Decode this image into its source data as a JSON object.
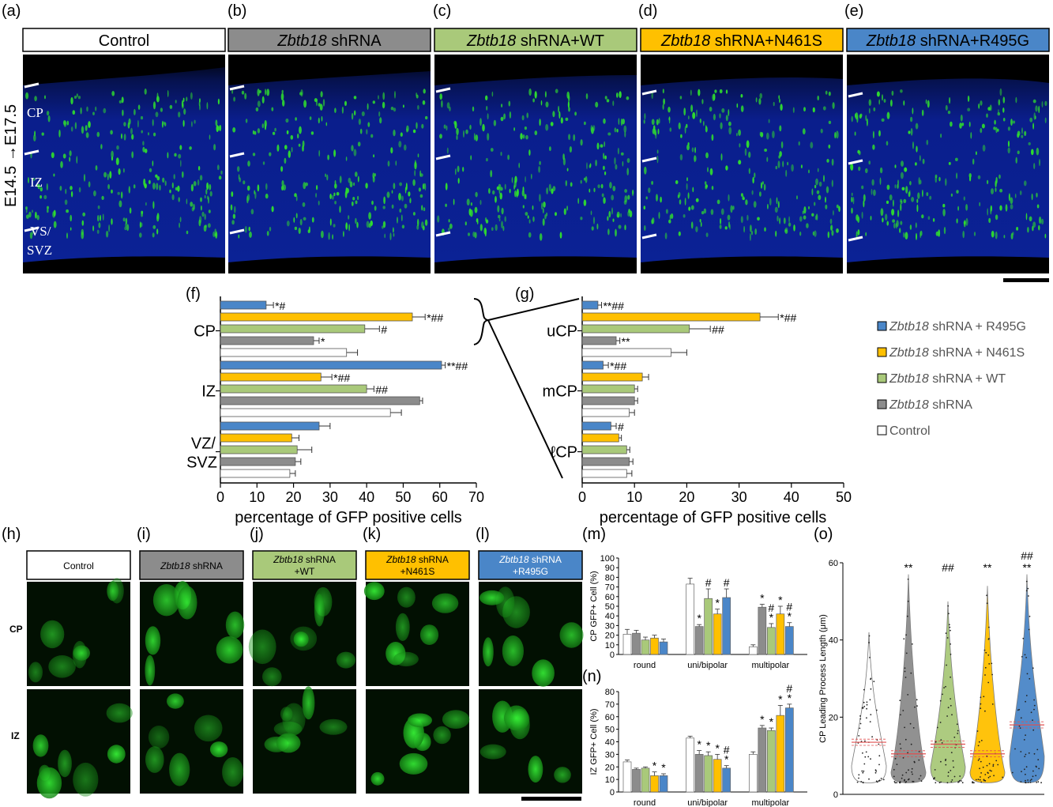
{
  "panel_letters": {
    "a": "(a)",
    "b": "(b)",
    "c": "(c)",
    "d": "(d)",
    "e": "(e)",
    "f": "(f)",
    "g": "(g)",
    "h": "(h)",
    "i": "(i)",
    "j": "(j)",
    "k": "(k)",
    "l": "(l)",
    "m": "(m)",
    "n": "(n)",
    "o": "(o)"
  },
  "gene": "Zbtb18",
  "headers_top": [
    {
      "italic": "",
      "rest": "Control",
      "color": "#ffffff"
    },
    {
      "italic": "Zbtb18",
      "rest": " shRNA",
      "color": "#8c8c8c"
    },
    {
      "italic": "Zbtb18",
      "rest": " shRNA+WT",
      "color": "#a9c97a"
    },
    {
      "italic": "Zbtb18",
      "rest": " shRNA+N461S",
      "color": "#ffc000"
    },
    {
      "italic": "Zbtb18",
      "rest": " shRNA+R495G",
      "color": "#4a86c8"
    }
  ],
  "headers_bottom": [
    {
      "line1_italic": "",
      "line1_rest": "Control",
      "line2": "",
      "color": "#ffffff"
    },
    {
      "line1_italic": "Zbtb18",
      "line1_rest": " shRNA",
      "line2": "",
      "color": "#8c8c8c"
    },
    {
      "line1_italic": "Zbtb18",
      "line1_rest": " shRNA",
      "line2": "+WT",
      "color": "#a9c97a"
    },
    {
      "line1_italic": "Zbtb18",
      "line1_rest": " shRNA",
      "line2": "+N461S",
      "color": "#ffc000"
    },
    {
      "line1_italic": "Zbtb18",
      "line1_rest": " shRNA",
      "line2": "+R495G",
      "color": "#4a86c8"
    }
  ],
  "micro_labels": {
    "timepoint": "E14.5 →E17.5",
    "cp": "CP",
    "iz": "IZ",
    "vs": "VS/",
    "svz": "SVZ",
    "row_cp": "CP",
    "row_iz": "IZ"
  },
  "colors": {
    "R495G": "#4a86c8",
    "N461S": "#ffc000",
    "WT": "#a9c97a",
    "shRNA": "#8c8c8c",
    "Control": "#ffffff",
    "tissue_blue": "#0a1e8c",
    "gfp": "#2fcf2f"
  },
  "legend": [
    {
      "italic": "Zbtb18",
      "rest": " shRNA + R495G",
      "color": "#4a86c8"
    },
    {
      "italic": "Zbtb18",
      "rest": " shRNA + N461S",
      "color": "#ffc000"
    },
    {
      "italic": "Zbtb18",
      "rest": " shRNA + WT",
      "color": "#a9c97a"
    },
    {
      "italic": "Zbtb18",
      "rest": " shRNA",
      "color": "#8c8c8c"
    },
    {
      "italic": "",
      "rest": "Control",
      "color": "#ffffff"
    }
  ],
  "chart_data": [
    {
      "panel": "f",
      "type": "bar",
      "orientation": "horizontal",
      "xlabel": "percentage of GFP positive cells",
      "xlim": [
        0,
        70
      ],
      "xticks": [
        0,
        10,
        20,
        30,
        40,
        50,
        60,
        70
      ],
      "categories": [
        "CP",
        "IZ",
        "VZ/SVZ"
      ],
      "category_labels": [
        [
          "CP"
        ],
        [
          "IZ"
        ],
        [
          "VZ/",
          "SVZ"
        ]
      ],
      "series": [
        {
          "name": "Zbtb18 shRNA + R495G",
          "values": [
            12.5,
            60.5,
            27
          ],
          "err": [
            2,
            1,
            3
          ],
          "sig": [
            "*#",
            "**##",
            ""
          ]
        },
        {
          "name": "Zbtb18 shRNA + N461S",
          "values": [
            52.5,
            27.5,
            19.5
          ],
          "err": [
            3.5,
            3,
            2
          ],
          "sig": [
            "*##",
            "*##",
            ""
          ]
        },
        {
          "name": "Zbtb18 shRNA + WT",
          "values": [
            39.5,
            40,
            21
          ],
          "err": [
            4,
            2,
            4
          ],
          "sig": [
            "#",
            "##",
            ""
          ]
        },
        {
          "name": "Zbtb18 shRNA",
          "values": [
            25.5,
            54.5,
            20.5
          ],
          "err": [
            1.5,
            0.8,
            1.5
          ],
          "sig": [
            "*",
            "",
            ""
          ]
        },
        {
          "name": "Control",
          "values": [
            34.5,
            46.5,
            19
          ],
          "err": [
            3,
            3,
            1.5
          ],
          "sig": [
            "",
            "",
            ""
          ]
        }
      ]
    },
    {
      "panel": "g",
      "type": "bar",
      "orientation": "horizontal",
      "xlabel": "percentage of GFP positive cells",
      "xlim": [
        0,
        50
      ],
      "xticks": [
        0,
        10,
        20,
        30,
        40,
        50
      ],
      "categories": [
        "uCP",
        "mCP",
        "ℓCP"
      ],
      "category_labels": [
        [
          "uCP"
        ],
        [
          "mCP"
        ],
        [
          "ℓCP"
        ]
      ],
      "series": [
        {
          "name": "Zbtb18 shRNA + R495G",
          "values": [
            3,
            4,
            5.5
          ],
          "err": [
            0.7,
            1,
            1
          ],
          "sig": [
            "**##",
            "*##",
            "#"
          ]
        },
        {
          "name": "Zbtb18 shRNA + N461S",
          "values": [
            34,
            11.5,
            7
          ],
          "err": [
            3.5,
            1.2,
            0.5
          ],
          "sig": [
            "*##",
            "",
            ""
          ]
        },
        {
          "name": "Zbtb18 shRNA + WT",
          "values": [
            20.5,
            10,
            8.5
          ],
          "err": [
            4,
            0.6,
            0.6
          ],
          "sig": [
            "##",
            "",
            ""
          ]
        },
        {
          "name": "Zbtb18 shRNA",
          "values": [
            6.5,
            10,
            9
          ],
          "err": [
            0.7,
            0.6,
            0.7
          ],
          "sig": [
            "**",
            "",
            ""
          ]
        },
        {
          "name": "Control",
          "values": [
            17,
            9,
            8.5
          ],
          "err": [
            3,
            1,
            1
          ],
          "sig": [
            "",
            "",
            ""
          ]
        }
      ]
    },
    {
      "panel": "m",
      "type": "bar",
      "orientation": "vertical",
      "ylabel": "CP GFP+ Cell (%)",
      "ylim": [
        0,
        100
      ],
      "yticks": [
        0,
        10,
        20,
        30,
        40,
        50,
        60,
        70,
        80,
        90,
        100
      ],
      "categories": [
        "round",
        "uni/bipolar",
        "multipolar"
      ],
      "series": [
        {
          "name": "Control",
          "values": [
            21,
            73,
            8
          ],
          "err": [
            5,
            6,
            2
          ],
          "sig": [
            "",
            "",
            ""
          ]
        },
        {
          "name": "Zbtb18 shRNA",
          "values": [
            22,
            29,
            49
          ],
          "err": [
            3,
            2,
            3
          ],
          "sig": [
            "",
            "*",
            "*"
          ]
        },
        {
          "name": "Zbtb18 shRNA + WT",
          "values": [
            15,
            58,
            28
          ],
          "err": [
            3,
            10,
            4
          ],
          "sig": [
            "",
            "#",
            "#\n*"
          ]
        },
        {
          "name": "Zbtb18 shRNA + N461S",
          "values": [
            17,
            42,
            42
          ],
          "err": [
            3,
            5,
            8
          ],
          "sig": [
            "",
            "*",
            "*"
          ]
        },
        {
          "name": "Zbtb18 shRNA + R495G",
          "values": [
            13,
            59,
            29
          ],
          "err": [
            3,
            9,
            4
          ],
          "sig": [
            "",
            "#",
            "#\n*"
          ]
        }
      ]
    },
    {
      "panel": "n",
      "type": "bar",
      "orientation": "vertical",
      "ylabel": "IZ GFP+ Cell (%)",
      "ylim": [
        0,
        80
      ],
      "yticks": [
        0,
        10,
        20,
        30,
        40,
        50,
        60,
        70,
        80
      ],
      "categories": [
        "round",
        "uni/bipolar",
        "multipolar"
      ],
      "series": [
        {
          "name": "Control",
          "values": [
            24,
            43,
            30
          ],
          "err": [
            1.5,
            1.5,
            2
          ],
          "sig": [
            "",
            "",
            ""
          ]
        },
        {
          "name": "Zbtb18 shRNA",
          "values": [
            18,
            30,
            51
          ],
          "err": [
            1,
            3,
            2
          ],
          "sig": [
            "",
            "*",
            "*"
          ]
        },
        {
          "name": "Zbtb18 shRNA + WT",
          "values": [
            19,
            29,
            49
          ],
          "err": [
            1,
            3,
            2
          ],
          "sig": [
            "",
            "*",
            "*"
          ]
        },
        {
          "name": "Zbtb18 shRNA + N461S",
          "values": [
            13,
            26,
            61
          ],
          "err": [
            3,
            4,
            8
          ],
          "sig": [
            "*",
            "*",
            "*"
          ]
        },
        {
          "name": "Zbtb18 shRNA + R495G",
          "values": [
            13,
            19,
            67
          ],
          "err": [
            1.5,
            2,
            3
          ],
          "sig": [
            "*",
            "#\n*",
            "#\n*"
          ]
        }
      ]
    },
    {
      "panel": "o",
      "type": "violin",
      "ylabel": "CP  Leading  Process  Length  (μm)",
      "ylim": [
        0,
        60
      ],
      "yticks": [
        0,
        20,
        40,
        60
      ],
      "groups": [
        {
          "name": "Control",
          "mean": 13.5,
          "max": 42,
          "sig": ""
        },
        {
          "name": "Zbtb18 shRNA",
          "mean": 10.5,
          "max": 57,
          "sig": "**"
        },
        {
          "name": "Zbtb18 shRNA + WT",
          "mean": 13,
          "max": 50,
          "sig": "##"
        },
        {
          "name": "Zbtb18 shRNA + N461S",
          "mean": 10.5,
          "max": 54,
          "sig": "**"
        },
        {
          "name": "Zbtb18 shRNA + R495G",
          "mean": 18,
          "max": 57,
          "sig": "##\n**"
        }
      ]
    }
  ]
}
